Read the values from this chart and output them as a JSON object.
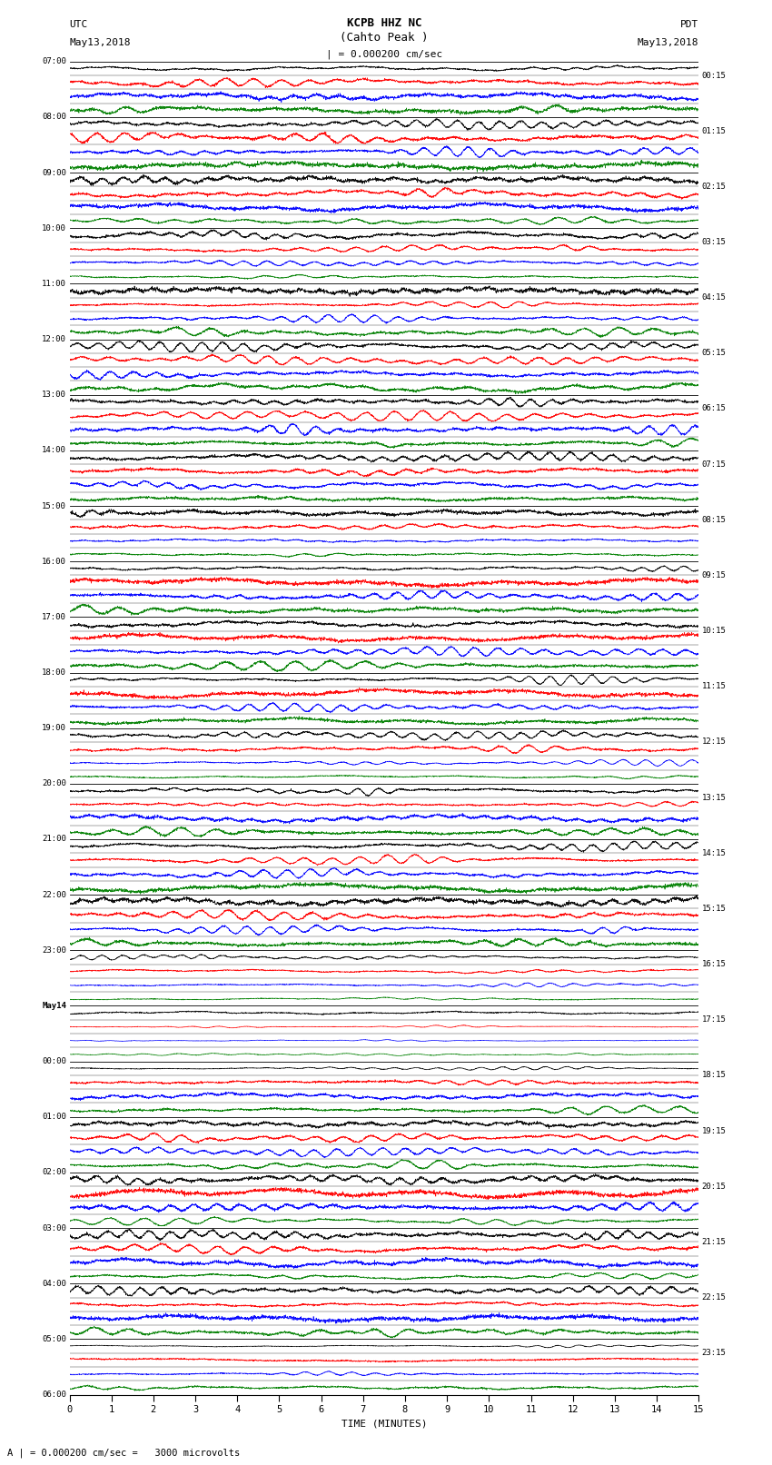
{
  "title_line1": "KCPB HHZ NC",
  "title_line2": "(Cahto Peak )",
  "title_line3": "| = 0.000200 cm/sec",
  "label_utc": "UTC",
  "label_pdt": "PDT",
  "label_date_left": "May13,2018",
  "label_date_right": "May13,2018",
  "label_bottom": "A | = 0.000200 cm/sec =   3000 microvolts",
  "xlabel": "TIME (MINUTES)",
  "left_labels_utc": [
    "07:00",
    "08:00",
    "09:00",
    "10:00",
    "11:00",
    "12:00",
    "13:00",
    "14:00",
    "15:00",
    "16:00",
    "17:00",
    "18:00",
    "19:00",
    "20:00",
    "21:00",
    "22:00",
    "23:00",
    "May14",
    "00:00",
    "01:00",
    "02:00",
    "03:00",
    "04:00",
    "05:00",
    "06:00"
  ],
  "right_labels_pdt": [
    "00:15",
    "01:15",
    "02:15",
    "03:15",
    "04:15",
    "05:15",
    "06:15",
    "07:15",
    "08:15",
    "09:15",
    "10:15",
    "11:15",
    "12:15",
    "13:15",
    "14:15",
    "15:15",
    "16:15",
    "17:15",
    "18:15",
    "19:15",
    "20:15",
    "21:15",
    "22:15",
    "23:15"
  ],
  "num_hours": 24,
  "traces_per_hour": 4,
  "minutes_per_row": 15,
  "colors": [
    "black",
    "red",
    "blue",
    "green"
  ],
  "bg_color": "white",
  "fig_width": 8.5,
  "fig_height": 16.13,
  "dpi": 100
}
